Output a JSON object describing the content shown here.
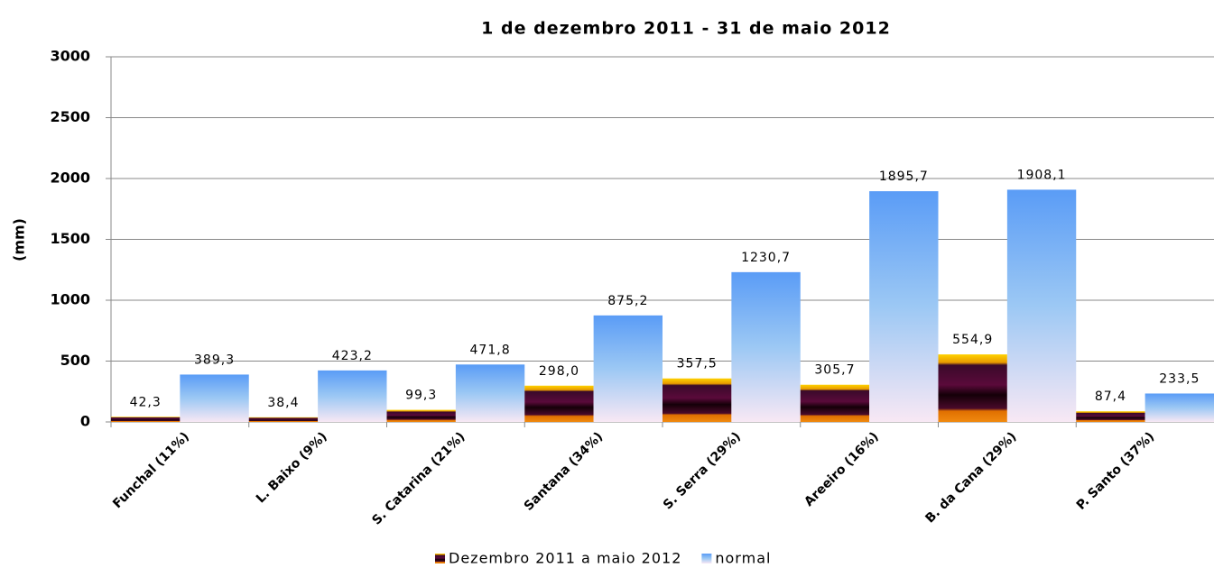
{
  "chart_data": {
    "type": "bar",
    "title": "1 de dezembro 2011 - 31 de maio 2012",
    "y_label": "(mm)",
    "categories": [
      "Funchal (11%)",
      "L. Baixo (9%)",
      "S. Catarina (21%)",
      "Santana (34%)",
      "S. Serra (29%)",
      "Areeiro (16%)",
      "B. da Cana (29%)",
      "P. Santo (37%)"
    ],
    "series": [
      {
        "name": "Dezembro 2011 a maio 2012",
        "color": "#3a0a2a",
        "values": [
          42.3,
          38.4,
          99.3,
          298.0,
          357.5,
          305.7,
          554.9,
          87.4
        ],
        "value_labels": [
          "42,3",
          "38,4",
          "99,3",
          "298,0",
          "357,5",
          "305,7",
          "554,9",
          "87,4"
        ]
      },
      {
        "name": "normal",
        "color": "#6fa8f0",
        "values": [
          389.3,
          423.2,
          471.8,
          875.2,
          1230.7,
          1895.7,
          1908.1,
          233.5
        ],
        "value_labels": [
          "389,3",
          "423,2",
          "471,8",
          "875,2",
          "1230,7",
          "1895,7",
          "1908,1",
          "233,5"
        ]
      }
    ],
    "ylim": [
      0,
      3000
    ],
    "yticks": [
      0,
      500,
      1000,
      1500,
      2000,
      2500,
      3000
    ],
    "grid": true,
    "legend": "bottom"
  }
}
